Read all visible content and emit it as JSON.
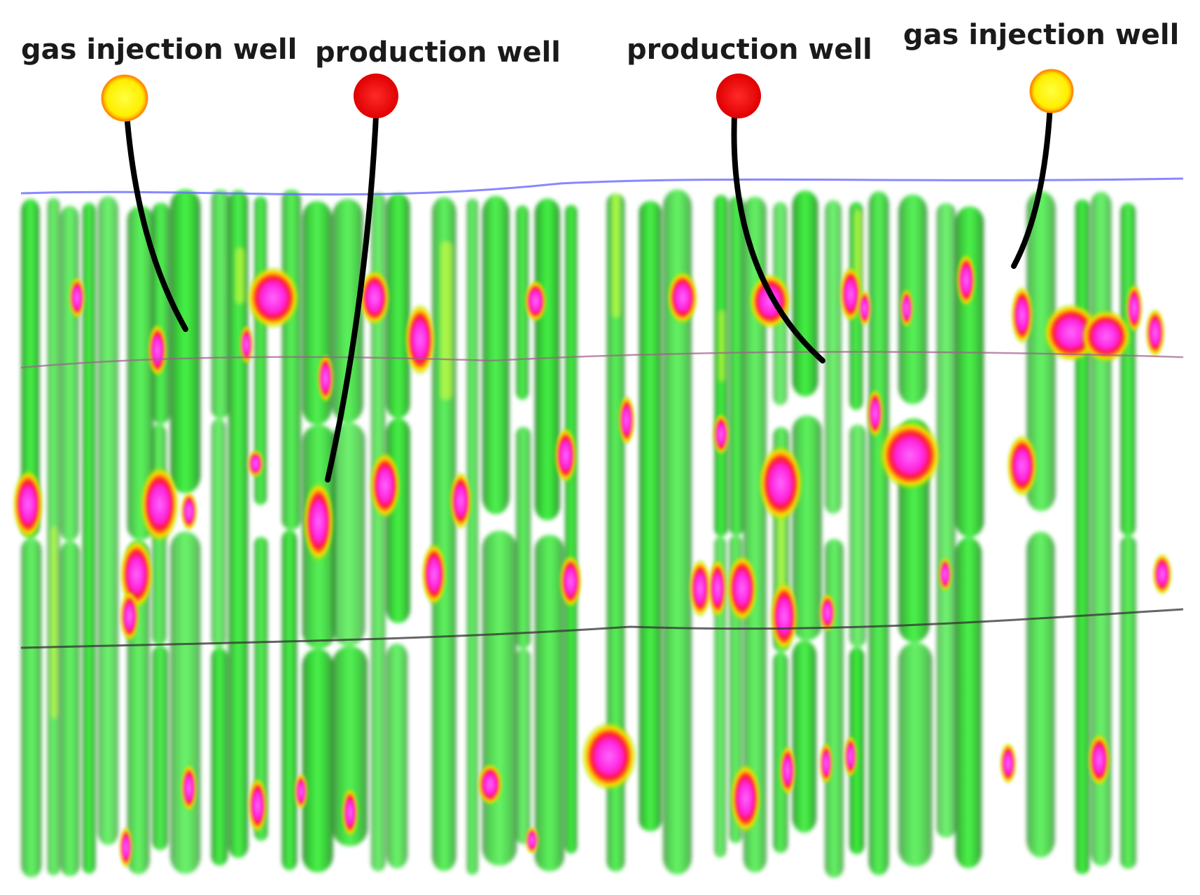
{
  "wells": [
    {
      "label": "gas injection well",
      "type": "gas-injection",
      "color": "#ffee00"
    },
    {
      "label": "production well",
      "type": "production",
      "color": "#ff0000"
    },
    {
      "label": "production well",
      "type": "production",
      "color": "#ff0000"
    },
    {
      "label": "gas injection well",
      "type": "gas-injection",
      "color": "#ffee00"
    }
  ],
  "colors": {
    "background": "#ffffff",
    "reservoir_low": "#1f8f1f",
    "reservoir_mid": "#2ee52e",
    "reservoir_high": "#ffff00",
    "hotspot_edge": "#ff1a1a",
    "hotspot_core": "#ff33ff",
    "gas_marker": "#ffee00",
    "production_marker": "#ff0000",
    "trajectory": "#000000",
    "top_horizon": "#6a6aff"
  }
}
